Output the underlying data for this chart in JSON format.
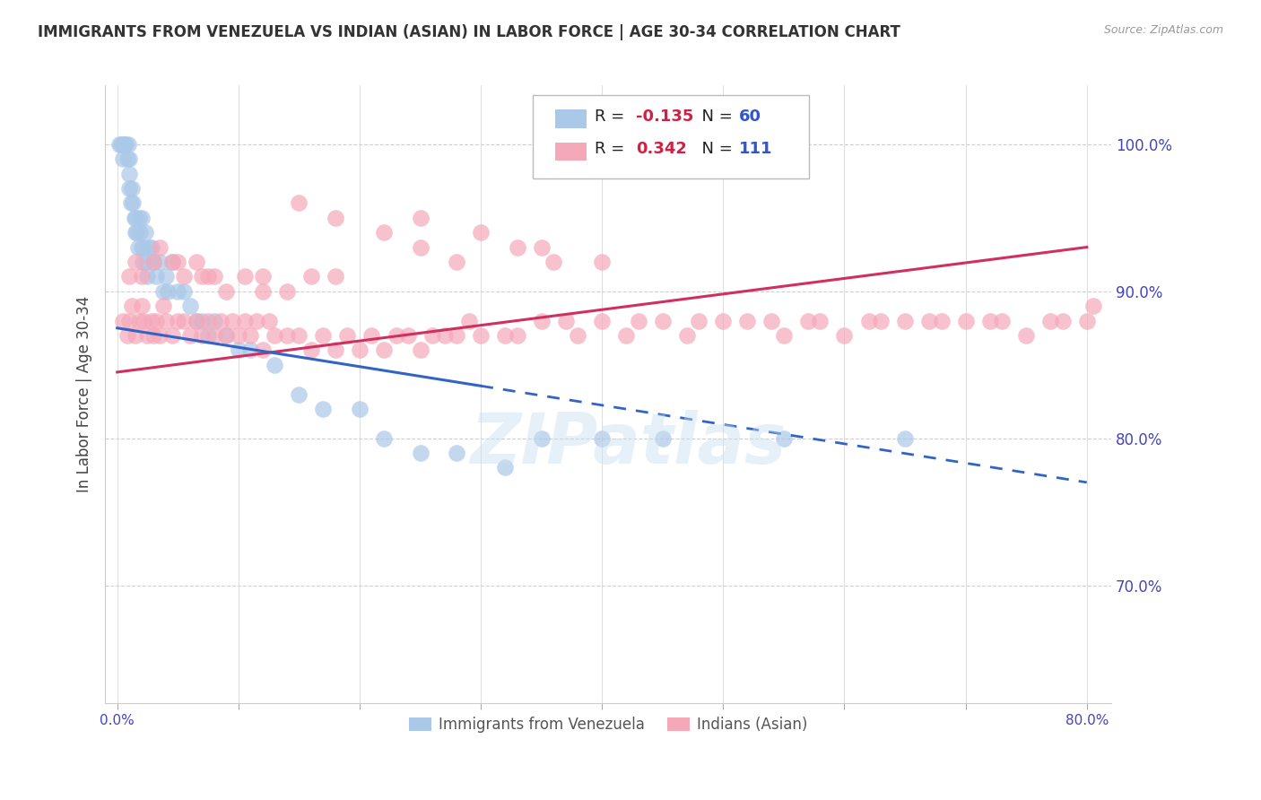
{
  "title": "IMMIGRANTS FROM VENEZUELA VS INDIAN (ASIAN) IN LABOR FORCE | AGE 30-34 CORRELATION CHART",
  "source": "Source: ZipAtlas.com",
  "ylabel": "In Labor Force | Age 30-34",
  "x_tick_labels": [
    "0.0%",
    "",
    "",
    "",
    "",
    "",
    "",
    "",
    "80.0%"
  ],
  "x_tick_values": [
    0,
    10,
    20,
    30,
    40,
    50,
    60,
    70,
    80
  ],
  "y_tick_labels": [
    "100.0%",
    "90.0%",
    "80.0%",
    "70.0%"
  ],
  "y_tick_values": [
    100,
    90,
    80,
    70
  ],
  "xlim": [
    -1,
    82
  ],
  "ylim": [
    62,
    104
  ],
  "legend_blue_label": "Immigrants from Venezuela",
  "legend_pink_label": "Indians (Asian)",
  "R_blue": -0.135,
  "N_blue": 60,
  "R_pink": 0.342,
  "N_pink": 111,
  "blue_color": "#aac8e8",
  "pink_color": "#f5a8b8",
  "blue_line_color": "#3264c8",
  "pink_line_color": "#d03060",
  "watermark": "ZIPatlas",
  "blue_scatter_x": [
    0.2,
    0.3,
    0.5,
    0.5,
    0.6,
    0.7,
    0.8,
    0.9,
    1.0,
    1.0,
    1.0,
    1.1,
    1.2,
    1.3,
    1.4,
    1.5,
    1.5,
    1.6,
    1.7,
    1.8,
    1.9,
    2.0,
    2.0,
    2.1,
    2.2,
    2.3,
    2.4,
    2.5,
    2.6,
    2.8,
    3.0,
    3.2,
    3.5,
    3.8,
    4.0,
    4.2,
    4.5,
    5.0,
    5.5,
    6.0,
    6.5,
    7.0,
    7.5,
    8.0,
    9.0,
    10.0,
    11.0,
    13.0,
    15.0,
    17.0,
    20.0,
    22.0,
    25.0,
    28.0,
    32.0,
    35.0,
    40.0,
    45.0,
    55.0,
    65.0
  ],
  "blue_scatter_y": [
    100,
    100,
    100,
    99,
    100,
    100,
    99,
    100,
    99,
    98,
    97,
    96,
    97,
    96,
    95,
    94,
    95,
    94,
    93,
    95,
    94,
    95,
    93,
    92,
    93,
    94,
    92,
    91,
    93,
    93,
    92,
    91,
    92,
    90,
    91,
    90,
    92,
    90,
    90,
    89,
    88,
    88,
    87,
    88,
    87,
    86,
    86,
    85,
    83,
    82,
    82,
    80,
    79,
    79,
    78,
    80,
    80,
    80,
    80,
    80
  ],
  "pink_scatter_x": [
    0.5,
    0.8,
    1.0,
    1.2,
    1.5,
    1.8,
    2.0,
    2.2,
    2.5,
    2.8,
    3.0,
    3.2,
    3.5,
    3.8,
    4.0,
    4.5,
    5.0,
    5.5,
    6.0,
    6.5,
    7.0,
    7.5,
    8.0,
    8.5,
    9.0,
    9.5,
    10.0,
    10.5,
    11.0,
    11.5,
    12.0,
    12.5,
    13.0,
    14.0,
    15.0,
    16.0,
    17.0,
    18.0,
    19.0,
    20.0,
    21.0,
    22.0,
    23.0,
    24.0,
    25.0,
    26.0,
    27.0,
    28.0,
    29.0,
    30.0,
    32.0,
    33.0,
    35.0,
    37.0,
    38.0,
    40.0,
    42.0,
    43.0,
    45.0,
    47.0,
    48.0,
    50.0,
    52.0,
    54.0,
    55.0,
    57.0,
    58.0,
    60.0,
    62.0,
    63.0,
    65.0,
    67.0,
    68.0,
    70.0,
    72.0,
    73.0,
    75.0,
    77.0,
    78.0,
    80.0,
    80.5,
    25.0,
    30.0,
    35.0,
    40.0,
    15.0,
    18.0,
    22.0,
    25.0,
    28.0,
    33.0,
    36.0,
    8.0,
    12.0,
    5.0,
    7.0,
    3.0,
    2.0,
    1.5,
    1.0,
    3.5,
    4.5,
    5.5,
    6.5,
    7.5,
    9.0,
    10.5,
    12.0,
    14.0,
    16.0,
    18.0
  ],
  "pink_scatter_y": [
    88,
    87,
    88,
    89,
    87,
    88,
    89,
    88,
    87,
    88,
    87,
    88,
    87,
    89,
    88,
    87,
    88,
    88,
    87,
    88,
    87,
    88,
    87,
    88,
    87,
    88,
    87,
    88,
    87,
    88,
    86,
    88,
    87,
    87,
    87,
    86,
    87,
    86,
    87,
    86,
    87,
    86,
    87,
    87,
    86,
    87,
    87,
    87,
    88,
    87,
    87,
    87,
    88,
    88,
    87,
    88,
    87,
    88,
    88,
    87,
    88,
    88,
    88,
    88,
    87,
    88,
    88,
    87,
    88,
    88,
    88,
    88,
    88,
    88,
    88,
    88,
    87,
    88,
    88,
    88,
    89,
    95,
    94,
    93,
    92,
    96,
    95,
    94,
    93,
    92,
    93,
    92,
    91,
    90,
    92,
    91,
    92,
    91,
    92,
    91,
    93,
    92,
    91,
    92,
    91,
    90,
    91,
    91,
    90,
    91,
    91
  ]
}
